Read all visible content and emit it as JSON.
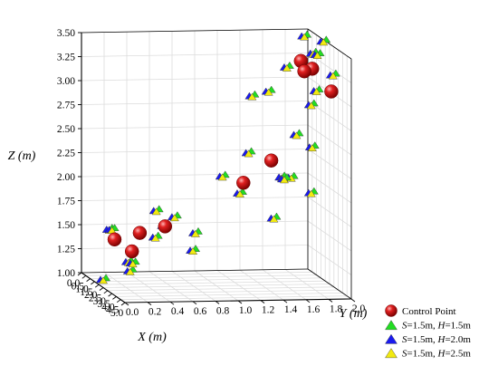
{
  "chart_data": {
    "type": "scatter3d",
    "axes": {
      "x": {
        "label": "X (m)",
        "range": [
          0,
          5
        ],
        "ticks": [
          "0.0",
          "0.5",
          "1.0",
          "1.5",
          "2.0",
          "2.5",
          "3.0",
          "3.5",
          "4.0",
          "4.5",
          "5.0"
        ]
      },
      "y": {
        "label": "Y (m)",
        "range": [
          0,
          2
        ],
        "ticks": [
          "0.0",
          "0.2",
          "0.4",
          "0.6",
          "0.8",
          "1.0",
          "1.2",
          "1.4",
          "1.6",
          "1.8",
          "2.0"
        ]
      },
      "z": {
        "label": "Z (m)",
        "range": [
          1,
          3.5
        ],
        "ticks": [
          "1.00",
          "1.25",
          "1.50",
          "1.75",
          "2.00",
          "2.25",
          "2.50",
          "2.75",
          "3.00",
          "3.25",
          "3.50"
        ]
      }
    },
    "grid": true,
    "legend_position": "bottom-right",
    "colors": {
      "control": "#d81818",
      "s15_h15": "#22dd22",
      "s15_h20": "#1a1aee",
      "s15_h25": "#f2ea10"
    },
    "legend": [
      {
        "key": "control",
        "marker": "sphere",
        "pre": "Control Point",
        "it": "",
        "mid": "",
        "it2": "",
        "post": ""
      },
      {
        "key": "s15_h15",
        "marker": "triangle",
        "pre": "",
        "it": "S",
        "mid": "=1.5m, ",
        "it2": "H",
        "post": "=1.5m"
      },
      {
        "key": "s15_h20",
        "marker": "triangle",
        "pre": "",
        "it": "S",
        "mid": "=1.5m, ",
        "it2": "H",
        "post": "=2.0m"
      },
      {
        "key": "s15_h25",
        "marker": "triangle",
        "pre": "",
        "it": "S",
        "mid": "=1.5m, ",
        "it2": "H",
        "post": "=2.5m"
      }
    ],
    "control_points": [
      [
        0.5,
        0.7,
        1.5
      ],
      [
        1.5,
        0.4,
        1.5
      ],
      [
        2.5,
        0.1,
        1.5
      ],
      [
        4.5,
        0.1,
        1.5
      ],
      [
        1.0,
        1.6,
        2.2
      ],
      [
        3.0,
        1.2,
        2.1
      ],
      [
        0.5,
        1.9,
        3.2
      ],
      [
        1.8,
        1.9,
        3.2
      ],
      [
        2.2,
        1.8,
        3.2
      ],
      [
        4.0,
        1.9,
        3.1
      ]
    ],
    "triangle_points": [
      [
        0.3,
        0.8,
        1.6
      ],
      [
        0.8,
        0.6,
        1.7
      ],
      [
        0.6,
        0.2,
        1.5
      ],
      [
        1.1,
        0.9,
        1.3
      ],
      [
        1.4,
        0.9,
        1.5
      ],
      [
        1.7,
        0.6,
        1.6
      ],
      [
        2.0,
        0.5,
        1.5
      ],
      [
        2.2,
        0.1,
        1.6
      ],
      [
        2.8,
        0.2,
        1.3
      ],
      [
        2.5,
        0.0,
        1.1
      ],
      [
        4.3,
        0.1,
        1.3
      ],
      [
        4.6,
        0.1,
        1.4
      ],
      [
        1.0,
        1.4,
        2.3
      ],
      [
        1.3,
        1.8,
        2.5
      ],
      [
        1.8,
        1.9,
        2.4
      ],
      [
        1.3,
        1.3,
        1.9
      ],
      [
        2.0,
        1.7,
        2.1
      ],
      [
        3.0,
        1.8,
        2.0
      ],
      [
        3.5,
        1.5,
        2.2
      ],
      [
        3.2,
        1.0,
        2.2
      ],
      [
        3.8,
        1.5,
        2.2
      ],
      [
        3.9,
        1.4,
        1.8
      ],
      [
        0.6,
        2.0,
        3.3
      ],
      [
        0.9,
        1.9,
        3.5
      ],
      [
        1.8,
        2.0,
        3.5
      ],
      [
        2.4,
        1.9,
        3.4
      ],
      [
        2.8,
        1.6,
        3.3
      ],
      [
        3.6,
        1.8,
        3.1
      ],
      [
        4.2,
        1.9,
        3.3
      ],
      [
        4.3,
        1.7,
        3.0
      ],
      [
        2.0,
        1.5,
        3.0
      ],
      [
        2.7,
        1.3,
        3.0
      ]
    ]
  }
}
